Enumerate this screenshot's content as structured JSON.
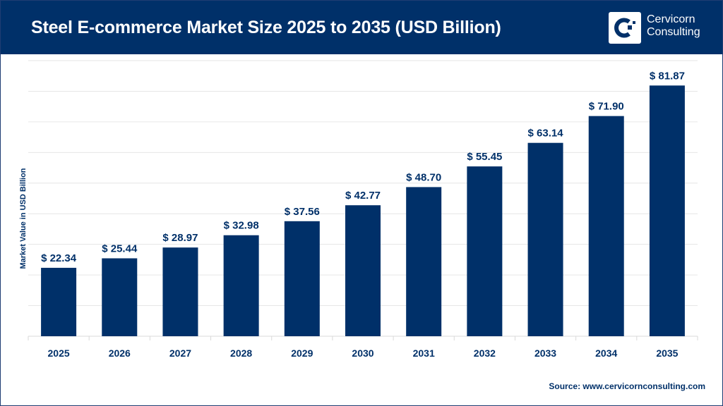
{
  "header": {
    "title": "Steel E-commerce Market Size 2025 to 2035 (USD Billion)",
    "logo_line1": "Cervicorn",
    "logo_line2": "Consulting"
  },
  "source": "Source: www.cervicornconsulting.com",
  "colors": {
    "bar": "#003069",
    "header": "#003069",
    "grid": "#e6e6e6"
  },
  "chart_data": {
    "type": "bar",
    "title": "Steel E-commerce Market Size 2025 to 2035 (USD Billion)",
    "xlabel": "",
    "ylabel": "Market Value in USD Billion",
    "categories": [
      "2025",
      "2026",
      "2027",
      "2028",
      "2029",
      "2030",
      "2031",
      "2032",
      "2033",
      "2034",
      "2035"
    ],
    "values": [
      22.34,
      25.44,
      28.97,
      32.98,
      37.56,
      42.77,
      48.7,
      55.45,
      63.14,
      71.9,
      81.87
    ],
    "data_labels": [
      "$ 22.34",
      "$ 25.44",
      "$ 28.97",
      "$ 32.98",
      "$ 37.56",
      "$ 42.77",
      "$ 48.70",
      "$ 55.45",
      "$ 63.14",
      "$ 71.90",
      "$ 81.87"
    ],
    "ylim": [
      0,
      90
    ],
    "grid": true,
    "legend": "none"
  }
}
